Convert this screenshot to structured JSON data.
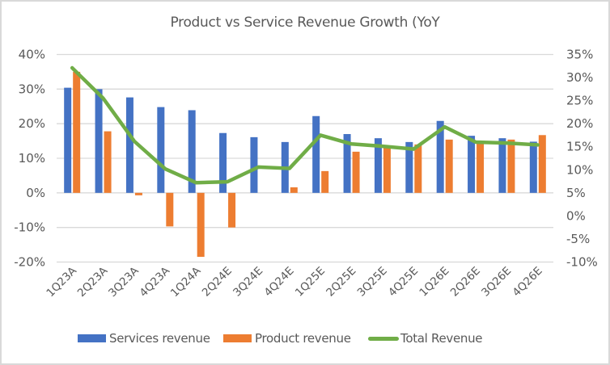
{
  "chart_data": {
    "type": "bar",
    "title": "Product vs Service Revenue Growth (YoY",
    "categories": [
      "1Q23A",
      "2Q23A",
      "3Q23A",
      "4Q23A",
      "1Q24A",
      "2Q24E",
      "3Q24E",
      "4Q24E",
      "1Q25E",
      "2Q25E",
      "3Q25E",
      "4Q25E",
      "1Q26E",
      "2Q26E",
      "3Q26E",
      "4Q26E"
    ],
    "series": [
      {
        "name": "Services revenue",
        "type": "bar",
        "axis": "left",
        "color": "#4472c4",
        "values": [
          30.4,
          30.0,
          27.6,
          24.8,
          23.9,
          17.3,
          16.1,
          14.7,
          22.2,
          17.0,
          15.8,
          14.7,
          20.8,
          16.5,
          15.8,
          14.8
        ]
      },
      {
        "name": "Product revenue",
        "type": "bar",
        "axis": "left",
        "color": "#ed7d31",
        "values": [
          35.0,
          17.8,
          -0.7,
          -9.7,
          -18.5,
          -10.0,
          0.0,
          1.6,
          6.3,
          11.9,
          13.2,
          14.0,
          15.4,
          14.5,
          15.4,
          16.7
        ]
      },
      {
        "name": "Total Revenue",
        "type": "line",
        "axis": "right",
        "color": "#70ad47",
        "values": [
          32.1,
          25.5,
          16.2,
          10.2,
          7.2,
          7.4,
          10.6,
          10.3,
          17.5,
          15.6,
          15.1,
          14.5,
          19.3,
          16.0,
          15.8,
          15.4
        ]
      }
    ],
    "y_left": {
      "min": -20,
      "max": 40,
      "step": 10,
      "ticks": [
        "-20%",
        "-10%",
        "0%",
        "10%",
        "20%",
        "30%",
        "40%"
      ]
    },
    "y_right": {
      "min": -10,
      "max": 35,
      "step": 5,
      "ticks": [
        "-10%",
        "-5%",
        "0%",
        "5%",
        "10%",
        "15%",
        "20%",
        "25%",
        "30%",
        "35%"
      ]
    },
    "xlabel": "",
    "ylabel": "",
    "grid": true,
    "legend_position": "bottom"
  },
  "legend": {
    "items": [
      {
        "label": "Services revenue",
        "color": "#4472c4"
      },
      {
        "label": "Product revenue",
        "color": "#ed7d31"
      },
      {
        "label": "Total Revenue",
        "color": "#70ad47"
      }
    ]
  }
}
